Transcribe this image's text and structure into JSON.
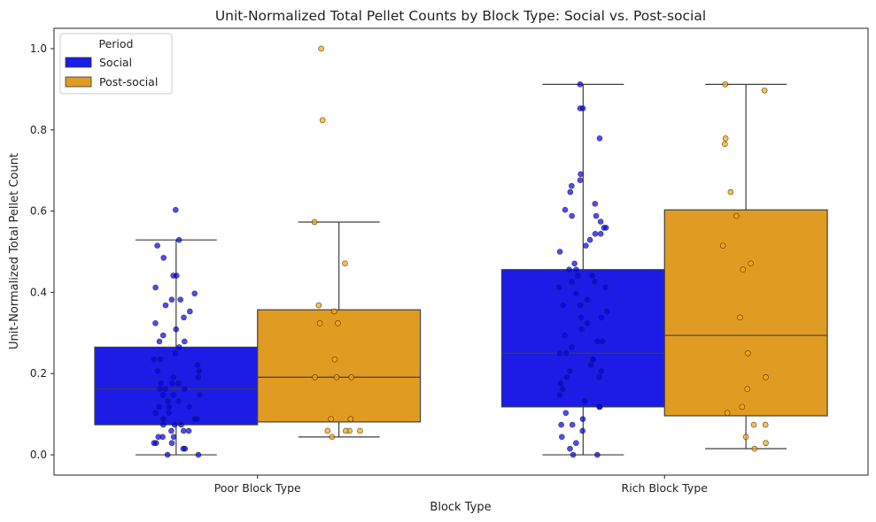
{
  "chart_data": {
    "type": "box",
    "title": "Unit-Normalized Total Pellet Counts by Block Type: Social vs. Post-social",
    "xlabel": "Block Type",
    "ylabel": "Unit-Normalized Total Pellet Count",
    "categories": [
      "Poor Block Type",
      "Rich Block Type"
    ],
    "ylim": [
      -0.05,
      1.05
    ],
    "yticks": [
      0.0,
      0.2,
      0.4,
      0.6,
      0.8,
      1.0
    ],
    "ytick_labels": [
      "0.0",
      "0.2",
      "0.4",
      "0.6",
      "0.8",
      "1.0"
    ],
    "grid": false,
    "legend": {
      "title": "Period",
      "placement": "top-left"
    },
    "series": [
      {
        "name": "Social",
        "box_color": "#1c1ce6",
        "point_color": "#0000ff",
        "boxes": [
          {
            "whisker_low": 0.0,
            "q1": 0.074,
            "median": 0.162,
            "q3": 0.265,
            "whisker_high": 0.529
          },
          {
            "whisker_low": 0.0,
            "q1": 0.118,
            "median": 0.25,
            "q3": 0.456,
            "whisker_high": 0.912
          }
        ],
        "points": [
          [
            0.603,
            0.529,
            0.515,
            0.485,
            0.441,
            0.441,
            0.412,
            0.397,
            0.382,
            0.382,
            0.368,
            0.353,
            0.338,
            0.324,
            0.309,
            0.294,
            0.279,
            0.279,
            0.265,
            0.25,
            0.235,
            0.235,
            0.221,
            0.206,
            0.206,
            0.191,
            0.191,
            0.176,
            0.176,
            0.176,
            0.162,
            0.162,
            0.162,
            0.147,
            0.147,
            0.147,
            0.132,
            0.132,
            0.118,
            0.118,
            0.118,
            0.103,
            0.103,
            0.088,
            0.088,
            0.088,
            0.074,
            0.074,
            0.074,
            0.059,
            0.059,
            0.059,
            0.044,
            0.044,
            0.044,
            0.029,
            0.029,
            0.029,
            0.015,
            0.015,
            0.0,
            0.0
          ],
          [
            0.912,
            0.853,
            0.853,
            0.779,
            0.691,
            0.676,
            0.662,
            0.647,
            0.618,
            0.603,
            0.588,
            0.588,
            0.574,
            0.559,
            0.559,
            0.544,
            0.544,
            0.529,
            0.515,
            0.5,
            0.471,
            0.456,
            0.456,
            0.441,
            0.441,
            0.426,
            0.426,
            0.412,
            0.412,
            0.397,
            0.382,
            0.368,
            0.368,
            0.353,
            0.338,
            0.338,
            0.324,
            0.309,
            0.294,
            0.279,
            0.279,
            0.265,
            0.25,
            0.25,
            0.235,
            0.235,
            0.221,
            0.206,
            0.206,
            0.191,
            0.191,
            0.176,
            0.162,
            0.147,
            0.132,
            0.118,
            0.118,
            0.103,
            0.088,
            0.074,
            0.074,
            0.059,
            0.044,
            0.029,
            0.015,
            0.0,
            0.0
          ]
        ]
      },
      {
        "name": "Post-social",
        "box_color": "#e09c22",
        "point_color": "#ffa500",
        "boxes": [
          {
            "whisker_low": 0.044,
            "q1": 0.081,
            "median": 0.191,
            "q3": 0.357,
            "whisker_high": 0.573
          },
          {
            "whisker_low": 0.015,
            "q1": 0.096,
            "median": 0.294,
            "q3": 0.603,
            "whisker_high": 0.912
          }
        ],
        "points": [
          [
            1.0,
            0.824,
            0.573,
            0.471,
            0.368,
            0.353,
            0.324,
            0.324,
            0.235,
            0.191,
            0.191,
            0.191,
            0.088,
            0.088,
            0.059,
            0.059,
            0.059,
            0.059,
            0.044
          ],
          [
            0.912,
            0.897,
            0.779,
            0.765,
            0.647,
            0.588,
            0.515,
            0.471,
            0.456,
            0.338,
            0.25,
            0.191,
            0.162,
            0.118,
            0.103,
            0.074,
            0.074,
            0.044,
            0.029,
            0.015
          ]
        ]
      }
    ]
  }
}
